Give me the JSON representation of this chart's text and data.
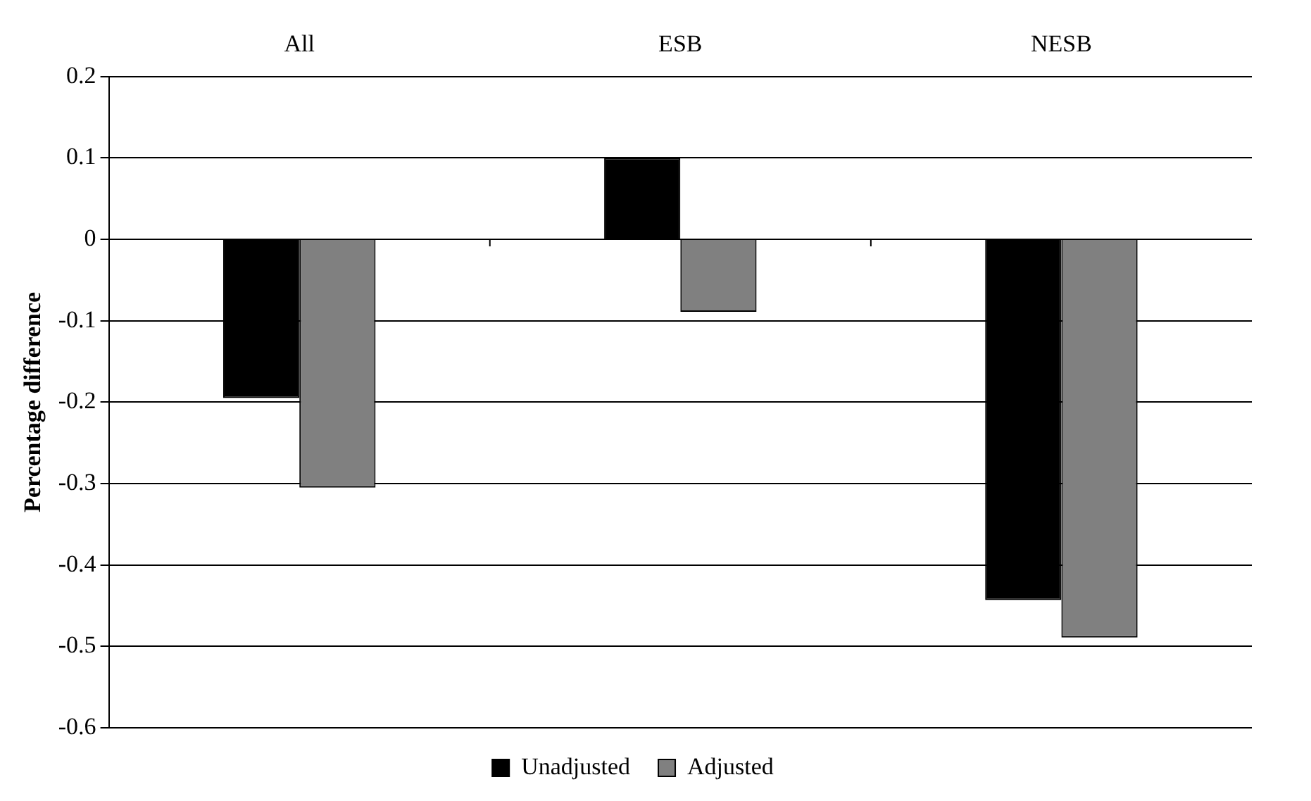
{
  "chart_data": {
    "type": "bar",
    "ylabel": "Percentage difference",
    "categories": [
      "All",
      "ESB",
      "NESB"
    ],
    "series": [
      {
        "name": "Unadjusted",
        "color": "#000000",
        "values": [
          -0.195,
          0.1,
          -0.443
        ]
      },
      {
        "name": "Adjusted",
        "color": "#808080",
        "values": [
          -0.305,
          -0.089,
          -0.489
        ]
      }
    ],
    "ylim": [
      -0.6,
      0.2
    ],
    "yticks": [
      {
        "value": -0.6,
        "label": "-0.6"
      },
      {
        "value": -0.5,
        "label": "-0.5"
      },
      {
        "value": -0.4,
        "label": "-0.4"
      },
      {
        "value": -0.3,
        "label": "-0.3"
      },
      {
        "value": -0.2,
        "label": "-0.2"
      },
      {
        "value": -0.1,
        "label": "-0.1"
      },
      {
        "value": 0,
        "label": "0"
      },
      {
        "value": 0.1,
        "label": "0.1"
      },
      {
        "value": 0.2,
        "label": "0.2"
      }
    ],
    "grid": "y",
    "legend": "bottom"
  }
}
